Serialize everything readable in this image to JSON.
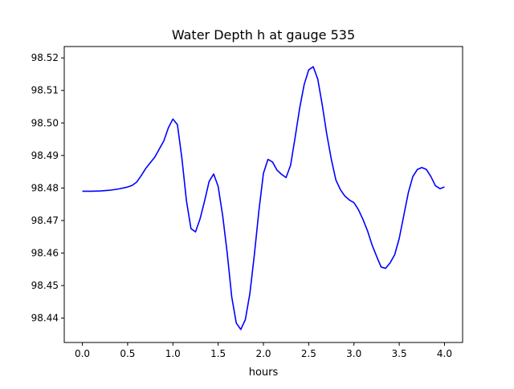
{
  "chart_data": {
    "type": "line",
    "title": "Water Depth h at gauge 535",
    "xlabel": "hours",
    "ylabel": "",
    "xlim": [
      -0.2,
      4.2
    ],
    "ylim": [
      98.4325,
      98.5235
    ],
    "xticks": [
      0.0,
      0.5,
      1.0,
      1.5,
      2.0,
      2.5,
      3.0,
      3.5,
      4.0
    ],
    "xtick_labels": [
      "0.0",
      "0.5",
      "1.0",
      "1.5",
      "2.0",
      "2.5",
      "3.0",
      "3.5",
      "4.0"
    ],
    "yticks": [
      98.44,
      98.45,
      98.46,
      98.47,
      98.48,
      98.49,
      98.5,
      98.51,
      98.52
    ],
    "ytick_labels": [
      "98.44",
      "98.45",
      "98.46",
      "98.47",
      "98.48",
      "98.49",
      "98.50",
      "98.51",
      "98.52"
    ],
    "grid": false,
    "series": [
      {
        "color": "#0000ff",
        "x": [
          0.0,
          0.1,
          0.2,
          0.3,
          0.4,
          0.5,
          0.55,
          0.6,
          0.65,
          0.7,
          0.8,
          0.9,
          0.95,
          1.0,
          1.05,
          1.1,
          1.15,
          1.2,
          1.25,
          1.3,
          1.35,
          1.4,
          1.45,
          1.5,
          1.55,
          1.6,
          1.65,
          1.7,
          1.75,
          1.8,
          1.85,
          1.9,
          1.95,
          2.0,
          2.05,
          2.1,
          2.15,
          2.2,
          2.25,
          2.3,
          2.35,
          2.4,
          2.45,
          2.5,
          2.55,
          2.6,
          2.65,
          2.7,
          2.75,
          2.8,
          2.85,
          2.9,
          2.95,
          3.0,
          3.05,
          3.1,
          3.15,
          3.2,
          3.25,
          3.3,
          3.35,
          3.4,
          3.45,
          3.5,
          3.55,
          3.6,
          3.65,
          3.7,
          3.75,
          3.8,
          3.85,
          3.9,
          3.95,
          4.0
        ],
        "y": [
          98.479,
          98.479,
          98.4791,
          98.4793,
          98.4797,
          98.4803,
          98.4808,
          98.4818,
          98.4838,
          98.486,
          98.4895,
          98.4945,
          98.4985,
          98.5012,
          98.4995,
          98.489,
          98.476,
          98.4675,
          98.4665,
          98.4705,
          98.476,
          98.482,
          98.4843,
          98.4805,
          98.4715,
          98.46,
          98.4465,
          98.4385,
          98.4365,
          98.4395,
          98.4475,
          98.4595,
          98.473,
          98.4845,
          98.4888,
          98.488,
          98.4855,
          98.4842,
          98.4832,
          98.487,
          98.4955,
          98.5045,
          98.5118,
          98.5163,
          98.5173,
          98.5135,
          98.5055,
          98.4965,
          98.4888,
          98.4825,
          98.4795,
          98.4775,
          98.4763,
          98.4755,
          98.4733,
          98.4703,
          98.4668,
          98.4625,
          98.459,
          98.4557,
          98.4553,
          98.457,
          98.4595,
          98.4645,
          98.4715,
          98.4785,
          98.4835,
          98.4857,
          98.4863,
          98.4857,
          98.4835,
          98.4807,
          98.4798,
          98.4803
        ]
      }
    ]
  }
}
